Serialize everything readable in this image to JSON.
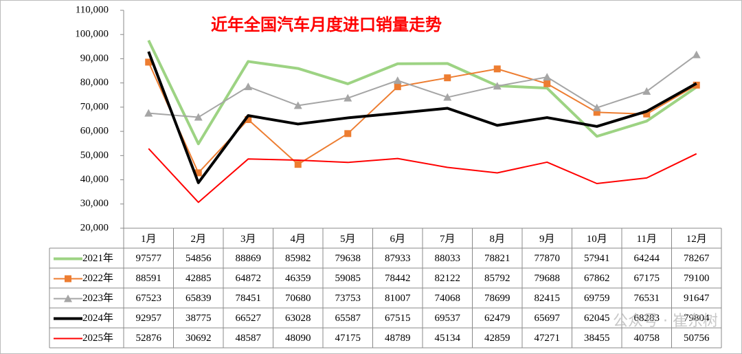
{
  "chart_data": {
    "type": "line",
    "title": "近年全国汽车月度进口销量走势",
    "categories": [
      "1月",
      "2月",
      "3月",
      "4月",
      "5月",
      "6月",
      "7月",
      "8月",
      "9月",
      "10月",
      "11月",
      "12月"
    ],
    "ylim": [
      20000,
      110000
    ],
    "yticks": [
      {
        "value": 20000,
        "label": "20,000"
      },
      {
        "value": 30000,
        "label": "30,000"
      },
      {
        "value": 40000,
        "label": "40,000"
      },
      {
        "value": 50000,
        "label": "50,000"
      },
      {
        "value": 60000,
        "label": "60,000"
      },
      {
        "value": 70000,
        "label": "70,000"
      },
      {
        "value": 80000,
        "label": "80,000"
      },
      {
        "value": 90000,
        "label": "90,000"
      },
      {
        "value": 100000,
        "label": "100,000"
      },
      {
        "value": 110000,
        "label": "110,000"
      }
    ],
    "grid": false,
    "series": [
      {
        "name": "2021年",
        "color": "#9dd383",
        "width": 4,
        "marker": "none",
        "values": [
          97577,
          54856,
          88869,
          85982,
          79638,
          87933,
          88033,
          78821,
          77870,
          57941,
          64244,
          78267
        ]
      },
      {
        "name": "2022年",
        "color": "#ed7d31",
        "width": 2,
        "marker": "square",
        "values": [
          88591,
          42885,
          64872,
          46359,
          59085,
          78442,
          82122,
          85792,
          79688,
          67862,
          67175,
          79100
        ]
      },
      {
        "name": "2023年",
        "color": "#a5a5a5",
        "width": 2,
        "marker": "triangle",
        "values": [
          67523,
          65839,
          78451,
          70680,
          73753,
          81007,
          74068,
          78699,
          82415,
          69759,
          76531,
          91647
        ]
      },
      {
        "name": "2024年",
        "color": "#000000",
        "width": 4,
        "marker": "none",
        "values": [
          92957,
          38775,
          66527,
          63028,
          65587,
          67515,
          69537,
          62479,
          65697,
          62045,
          68283,
          79804
        ]
      },
      {
        "name": "2025年",
        "color": "#ff0000",
        "width": 2,
        "marker": "none",
        "values": [
          52876,
          30692,
          48587,
          48090,
          47175,
          48789,
          45134,
          42859,
          47271,
          38455,
          40758,
          50756
        ]
      }
    ],
    "watermark": "公众号 · 崔东树"
  }
}
